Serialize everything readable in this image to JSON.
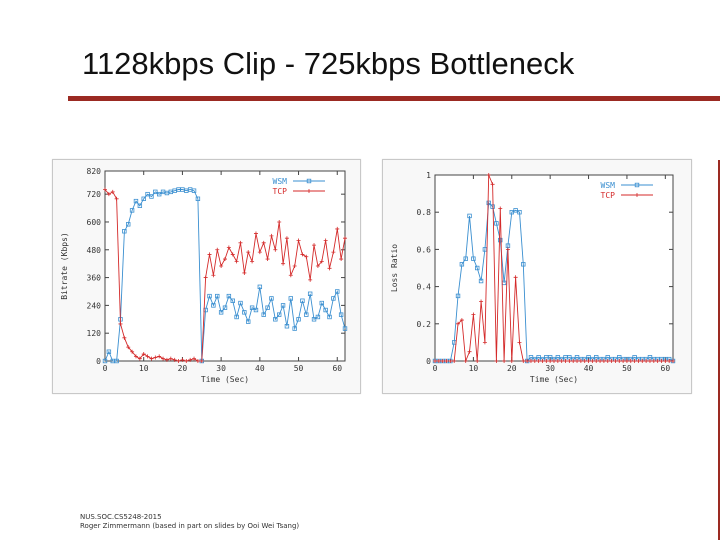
{
  "slide": {
    "title": "1128kbps Clip - 725kbps Bottleneck",
    "footer_line1": "NUS.SOC.CS5248-2015",
    "footer_line2": "Roger Zimmermann (based in part on slides by Ooi Wei Tsang)",
    "accent_color": "#9b2a22"
  },
  "chart_data": [
    {
      "type": "line",
      "title": "",
      "xlabel": "Time (Sec)",
      "ylabel": "Bitrate (Kbps)",
      "xlim": [
        0,
        62
      ],
      "ylim": [
        0,
        820
      ],
      "xticks": [
        0,
        10,
        20,
        30,
        40,
        50,
        60
      ],
      "xtick_labels": [
        "0",
        "10",
        "20",
        "30",
        "40",
        "50",
        "60"
      ],
      "yticks": [
        0,
        120,
        240,
        360,
        480,
        600,
        720,
        820
      ],
      "ytick_labels": [
        "0",
        "120",
        "240",
        "360",
        "480",
        "600",
        "720",
        "820"
      ],
      "legend_position": "top-right",
      "grid": false,
      "series": [
        {
          "name": "WSM",
          "color": "#3a8fd0",
          "marker": "square",
          "x": [
            0,
            1,
            2,
            3,
            4,
            5,
            6,
            7,
            8,
            9,
            10,
            11,
            12,
            13,
            14,
            15,
            16,
            17,
            18,
            19,
            20,
            21,
            22,
            23,
            24,
            25,
            26,
            27,
            28,
            29,
            30,
            31,
            32,
            33,
            34,
            35,
            36,
            37,
            38,
            39,
            40,
            41,
            42,
            43,
            44,
            45,
            46,
            47,
            48,
            49,
            50,
            51,
            52,
            53,
            54,
            55,
            56,
            57,
            58,
            59,
            60,
            61,
            62
          ],
          "values": [
            0,
            40,
            0,
            0,
            180,
            560,
            590,
            650,
            690,
            670,
            700,
            720,
            710,
            730,
            720,
            730,
            725,
            730,
            735,
            740,
            740,
            735,
            740,
            735,
            700,
            0,
            220,
            280,
            240,
            280,
            210,
            230,
            280,
            260,
            190,
            250,
            210,
            170,
            230,
            220,
            320,
            200,
            230,
            270,
            180,
            200,
            240,
            150,
            270,
            140,
            180,
            260,
            200,
            290,
            180,
            190,
            250,
            220,
            190,
            270,
            300,
            200,
            140
          ]
        },
        {
          "name": "TCP",
          "color": "#d42a2a",
          "marker": "plus",
          "x": [
            0,
            1,
            2,
            3,
            4,
            5,
            6,
            7,
            8,
            9,
            10,
            11,
            12,
            13,
            14,
            15,
            16,
            17,
            18,
            19,
            20,
            21,
            22,
            23,
            24,
            25,
            26,
            27,
            28,
            29,
            30,
            31,
            32,
            33,
            34,
            35,
            36,
            37,
            38,
            39,
            40,
            41,
            42,
            43,
            44,
            45,
            46,
            47,
            48,
            49,
            50,
            51,
            52,
            53,
            54,
            55,
            56,
            57,
            58,
            59,
            60,
            61,
            62
          ],
          "values": [
            740,
            720,
            730,
            700,
            160,
            100,
            60,
            40,
            20,
            10,
            30,
            20,
            10,
            15,
            20,
            10,
            5,
            10,
            5,
            0,
            5,
            0,
            5,
            10,
            0,
            0,
            360,
            460,
            370,
            480,
            410,
            440,
            490,
            460,
            430,
            510,
            380,
            470,
            430,
            550,
            470,
            510,
            440,
            540,
            480,
            600,
            420,
            530,
            370,
            410,
            520,
            460,
            450,
            350,
            500,
            410,
            430,
            520,
            400,
            470,
            570,
            440,
            530
          ]
        }
      ]
    },
    {
      "type": "line",
      "title": "",
      "xlabel": "Time (Sec)",
      "ylabel": "Loss Ratio",
      "xlim": [
        0,
        62
      ],
      "ylim": [
        0,
        1
      ],
      "xticks": [
        0,
        10,
        20,
        30,
        40,
        50,
        60
      ],
      "xtick_labels": [
        "0",
        "10",
        "20",
        "30",
        "40",
        "50",
        "60"
      ],
      "yticks": [
        0,
        0.2,
        0.4,
        0.6,
        0.8,
        1
      ],
      "ytick_labels": [
        "0",
        "0.2",
        "0.4",
        "0.6",
        "0.8",
        "1"
      ],
      "legend_position": "top-right",
      "grid": false,
      "series": [
        {
          "name": "WSM",
          "color": "#3a8fd0",
          "marker": "square",
          "x": [
            0,
            1,
            2,
            3,
            4,
            5,
            6,
            7,
            8,
            9,
            10,
            11,
            12,
            13,
            14,
            15,
            16,
            17,
            18,
            19,
            20,
            21,
            22,
            23,
            24,
            25,
            26,
            27,
            28,
            29,
            30,
            31,
            32,
            33,
            34,
            35,
            36,
            37,
            38,
            39,
            40,
            41,
            42,
            43,
            44,
            45,
            46,
            47,
            48,
            49,
            50,
            51,
            52,
            53,
            54,
            55,
            56,
            57,
            58,
            59,
            60,
            61,
            62
          ],
          "values": [
            0,
            0,
            0,
            0,
            0,
            0.1,
            0.35,
            0.52,
            0.55,
            0.78,
            0.55,
            0.5,
            0.43,
            0.6,
            0.85,
            0.83,
            0.74,
            0.65,
            0.42,
            0.62,
            0.8,
            0.81,
            0.8,
            0.52,
            0,
            0.02,
            0.01,
            0.02,
            0.01,
            0.02,
            0.02,
            0.01,
            0.02,
            0.01,
            0.02,
            0.02,
            0.01,
            0.02,
            0.01,
            0.01,
            0.02,
            0.01,
            0.02,
            0.01,
            0.01,
            0.02,
            0.01,
            0.01,
            0.02,
            0.01,
            0.01,
            0.01,
            0.02,
            0.01,
            0.01,
            0.01,
            0.02,
            0.01,
            0.01,
            0.01,
            0.01,
            0.01,
            0
          ]
        },
        {
          "name": "TCP",
          "color": "#d42a2a",
          "marker": "plus",
          "x": [
            0,
            1,
            2,
            3,
            4,
            5,
            6,
            7,
            8,
            9,
            10,
            11,
            12,
            13,
            14,
            15,
            16,
            17,
            18,
            19,
            20,
            21,
            22,
            23,
            24,
            25,
            26,
            27,
            28,
            29,
            30,
            31,
            32,
            33,
            34,
            35,
            36,
            37,
            38,
            39,
            40,
            41,
            42,
            43,
            44,
            45,
            46,
            47,
            48,
            49,
            50,
            51,
            52,
            53,
            54,
            55,
            56,
            57,
            58,
            59,
            60,
            61,
            62
          ],
          "values": [
            0,
            0,
            0,
            0,
            0,
            0,
            0.2,
            0.22,
            0,
            0.05,
            0.25,
            0,
            0.32,
            0.1,
            1,
            0.95,
            0,
            0.82,
            0,
            0.6,
            0,
            0.45,
            0.1,
            0,
            0,
            0,
            0,
            0,
            0,
            0,
            0,
            0,
            0,
            0,
            0,
            0,
            0,
            0,
            0,
            0,
            0,
            0,
            0,
            0,
            0,
            0,
            0,
            0,
            0,
            0,
            0,
            0,
            0,
            0,
            0,
            0,
            0,
            0,
            0,
            0,
            0,
            0,
            0
          ]
        }
      ]
    }
  ]
}
